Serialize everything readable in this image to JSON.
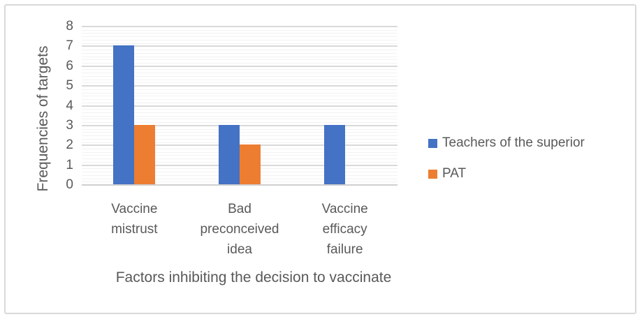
{
  "chart_data": {
    "type": "bar",
    "title": "",
    "categories": [
      "Vaccine mistrust",
      "Bad preconceived idea",
      "Vaccine efficacy failure"
    ],
    "categories_wrapped": [
      [
        "Vaccine",
        "mistrust"
      ],
      [
        "Bad",
        "preconceived",
        "idea"
      ],
      [
        "Vaccine",
        "efficacy",
        "failure"
      ]
    ],
    "series": [
      {
        "name": "Teachers of the superior",
        "color": "#4472C4",
        "values": [
          7,
          3,
          3
        ]
      },
      {
        "name": "PAT",
        "color": "#ED7D31",
        "values": [
          3,
          2,
          0
        ]
      }
    ],
    "xlabel": "Factors inhibiting the decision to vaccinate",
    "ylabel": "Frequencies of targets",
    "ylim": [
      0,
      8
    ],
    "yticks": [
      0,
      1,
      2,
      3,
      4,
      5,
      6,
      7,
      8
    ],
    "grid": {
      "major_horizontal": true,
      "minor_horizontal": true,
      "minor_per_unit": 5
    },
    "legend_position": "right-middle"
  },
  "colors": {
    "series_blue": "#4472C4",
    "series_orange": "#ED7D31",
    "gridline_major": "#D9D9D9",
    "gridline_minor": "#F2F2F2",
    "axis_line": "#CFCFCF",
    "text": "#595959",
    "frame_border": "#D9D9D9",
    "background": "#FFFFFF"
  }
}
